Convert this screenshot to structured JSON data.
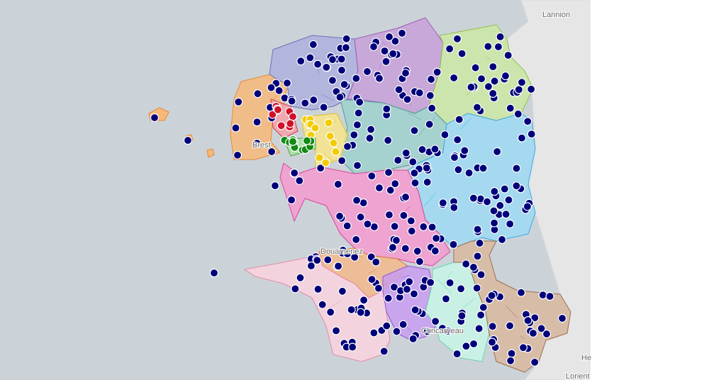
{
  "places": {
    "lannion": "Lannion",
    "brest": "Brest",
    "douarnenez": "Douarnenez",
    "concarneau": "Concarneau",
    "lorient": "Lorient",
    "hennebont": "He"
  }
}
